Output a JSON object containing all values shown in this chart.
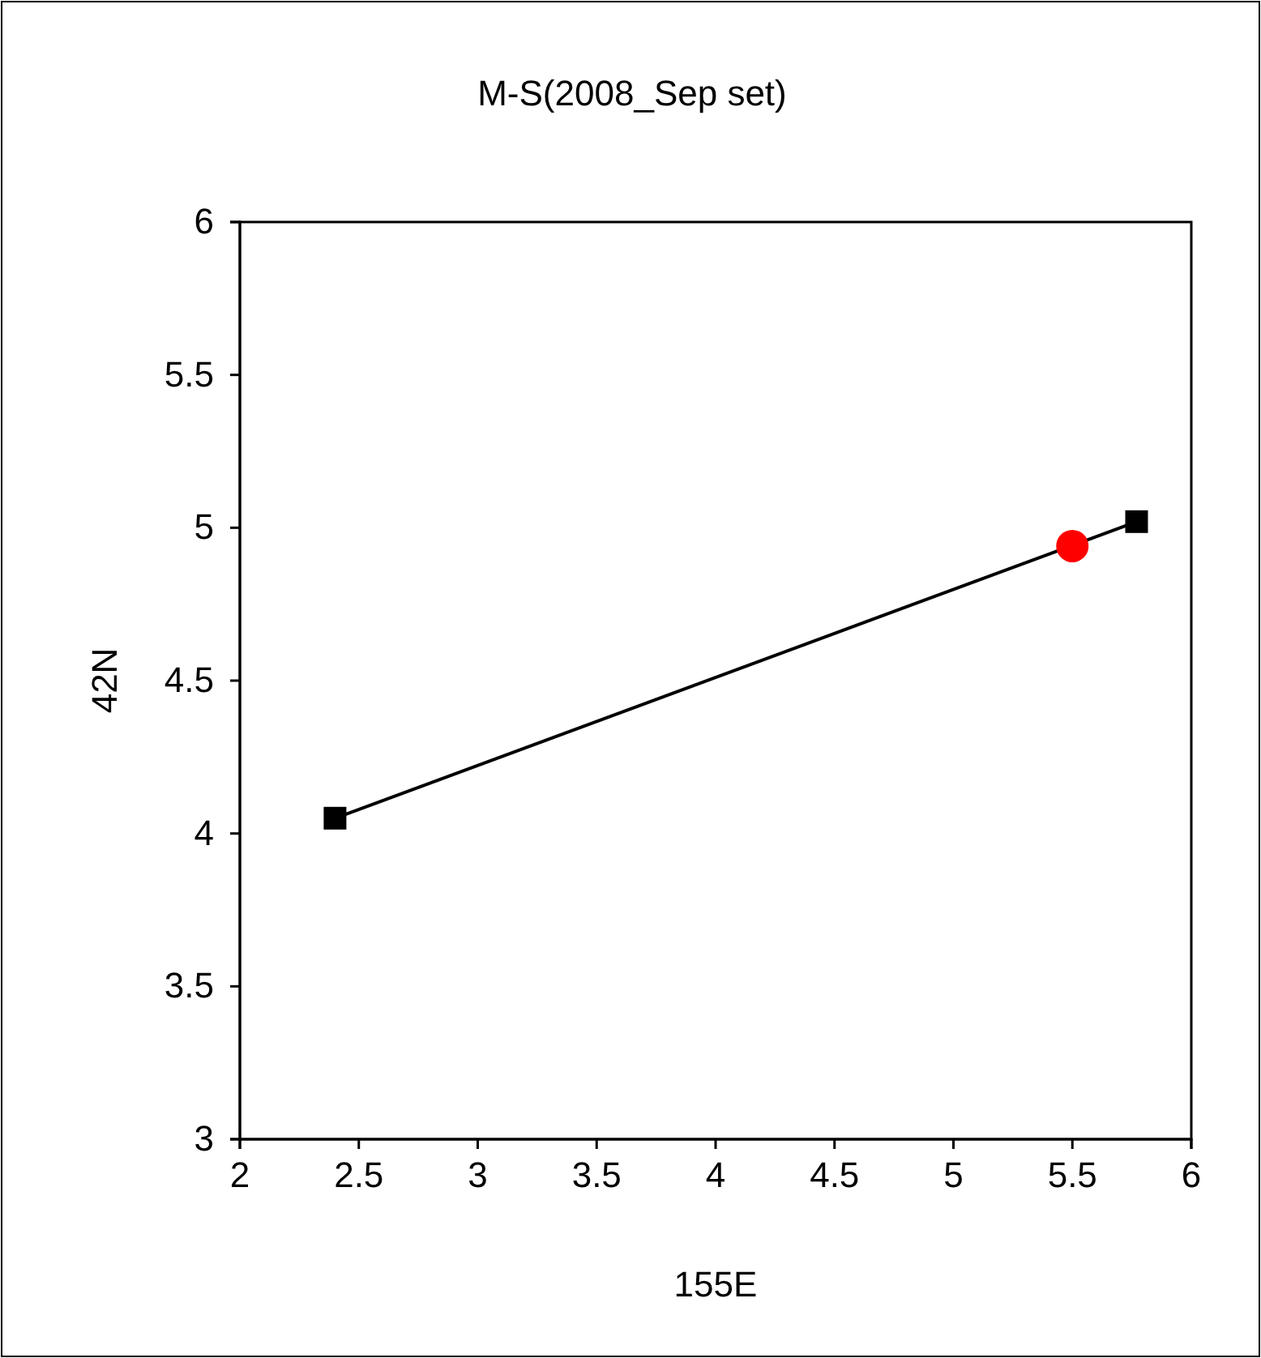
{
  "chart_data": {
    "type": "line",
    "title": "M-S(2008_Sep set)",
    "xlabel": "155E",
    "ylabel": "42N",
    "xlim": [
      2,
      6
    ],
    "xticks": [
      2,
      2.5,
      3,
      3.5,
      4,
      4.5,
      5,
      5.5,
      6
    ],
    "ylim": [
      3,
      6
    ],
    "yticks": [
      3,
      3.5,
      4,
      4.5,
      5,
      5.5,
      6
    ],
    "grid": false,
    "series": [
      {
        "x": [
          2.4,
          5.77
        ],
        "values": [
          4.05,
          5.02
        ],
        "color": "#000000",
        "marker": "square",
        "line_style": "solid"
      },
      {
        "type": "scatter",
        "x": [
          5.5
        ],
        "values": [
          4.94
        ],
        "color": "#ff0000",
        "marker": "circle"
      }
    ]
  }
}
